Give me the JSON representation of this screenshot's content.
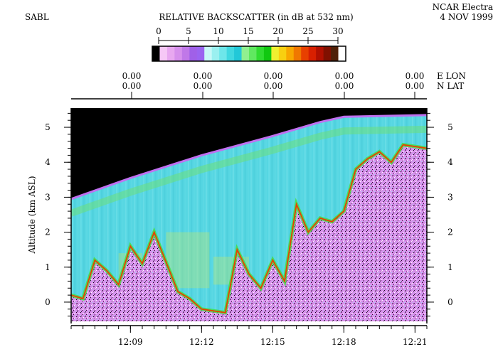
{
  "header": {
    "instrument": "SABL",
    "title": "RELATIVE BACKSCATTER (in dB at 532 nm)",
    "platform": "NCAR Electra",
    "date": "4 NOV 1999"
  },
  "colorbar": {
    "ticks": [
      "0",
      "5",
      "10",
      "15",
      "20",
      "25",
      "30"
    ],
    "colors": [
      "#000000",
      "#f6c8f6",
      "#e8a8f0",
      "#d690ec",
      "#c078e8",
      "#a060e8",
      "#9b64f0",
      "#c8f8f8",
      "#9af0f0",
      "#6ee6ea",
      "#40d8e0",
      "#22c8d8",
      "#90f090",
      "#60e860",
      "#30dc30",
      "#10c810",
      "#f0f030",
      "#f8d010",
      "#f8a800",
      "#f07800",
      "#e84000",
      "#d82000",
      "#b01000",
      "#801000",
      "#502008",
      "#ffffff"
    ]
  },
  "geo": {
    "lon_label": "E LON",
    "lat_label": "N LAT",
    "lon_values": [
      "0.00",
      "0.00",
      "0.00",
      "0.00",
      "0.00"
    ],
    "lat_values": [
      "0.00",
      "0.00",
      "0.00",
      "0.00",
      "0.00"
    ]
  },
  "chart_data": {
    "type": "heatmap",
    "title": "RELATIVE BACKSCATTER (in dB at 532 nm)",
    "ylabel": "Altitude (km ASL)",
    "xlabel": "",
    "x_ticks": [
      "12:09",
      "12:12",
      "12:15",
      "12:18",
      "12:21"
    ],
    "y_ticks": [
      "0",
      "1",
      "2",
      "3",
      "4",
      "5"
    ],
    "ylim": [
      -0.55,
      5.55
    ],
    "xlim": [
      "12:06:30",
      "12:21:30"
    ],
    "colorbar_range_db": [
      0,
      30
    ],
    "aircraft_altitude_km": {
      "time": [
        "12:06:30",
        "12:09:00",
        "12:12:00",
        "12:15:00",
        "12:17:00",
        "12:18:00",
        "12:21:30"
      ],
      "altitude": [
        2.95,
        3.55,
        4.2,
        4.75,
        5.15,
        5.3,
        5.35
      ]
    },
    "cloud_top_km": {
      "time": [
        "12:06:30",
        "12:07:00",
        "12:07:30",
        "12:08:00",
        "12:08:30",
        "12:09:00",
        "12:09:30",
        "12:10:00",
        "12:11:00",
        "12:11:30",
        "12:12:00",
        "12:13:00",
        "12:13:30",
        "12:14:00",
        "12:14:30",
        "12:15:00",
        "12:15:30",
        "12:16:00",
        "12:16:30",
        "12:17:00",
        "12:17:30",
        "12:18:00",
        "12:18:30",
        "12:19:00",
        "12:19:30",
        "12:20:00",
        "12:20:30",
        "12:21:30"
      ],
      "altitude": [
        0.2,
        0.1,
        1.2,
        0.9,
        0.5,
        1.6,
        1.1,
        2.0,
        0.3,
        0.1,
        -0.2,
        -0.3,
        1.5,
        0.8,
        0.4,
        1.2,
        0.6,
        2.8,
        2.0,
        2.4,
        2.3,
        2.6,
        3.8,
        4.1,
        4.3,
        4.0,
        4.5,
        4.4
      ]
    }
  }
}
